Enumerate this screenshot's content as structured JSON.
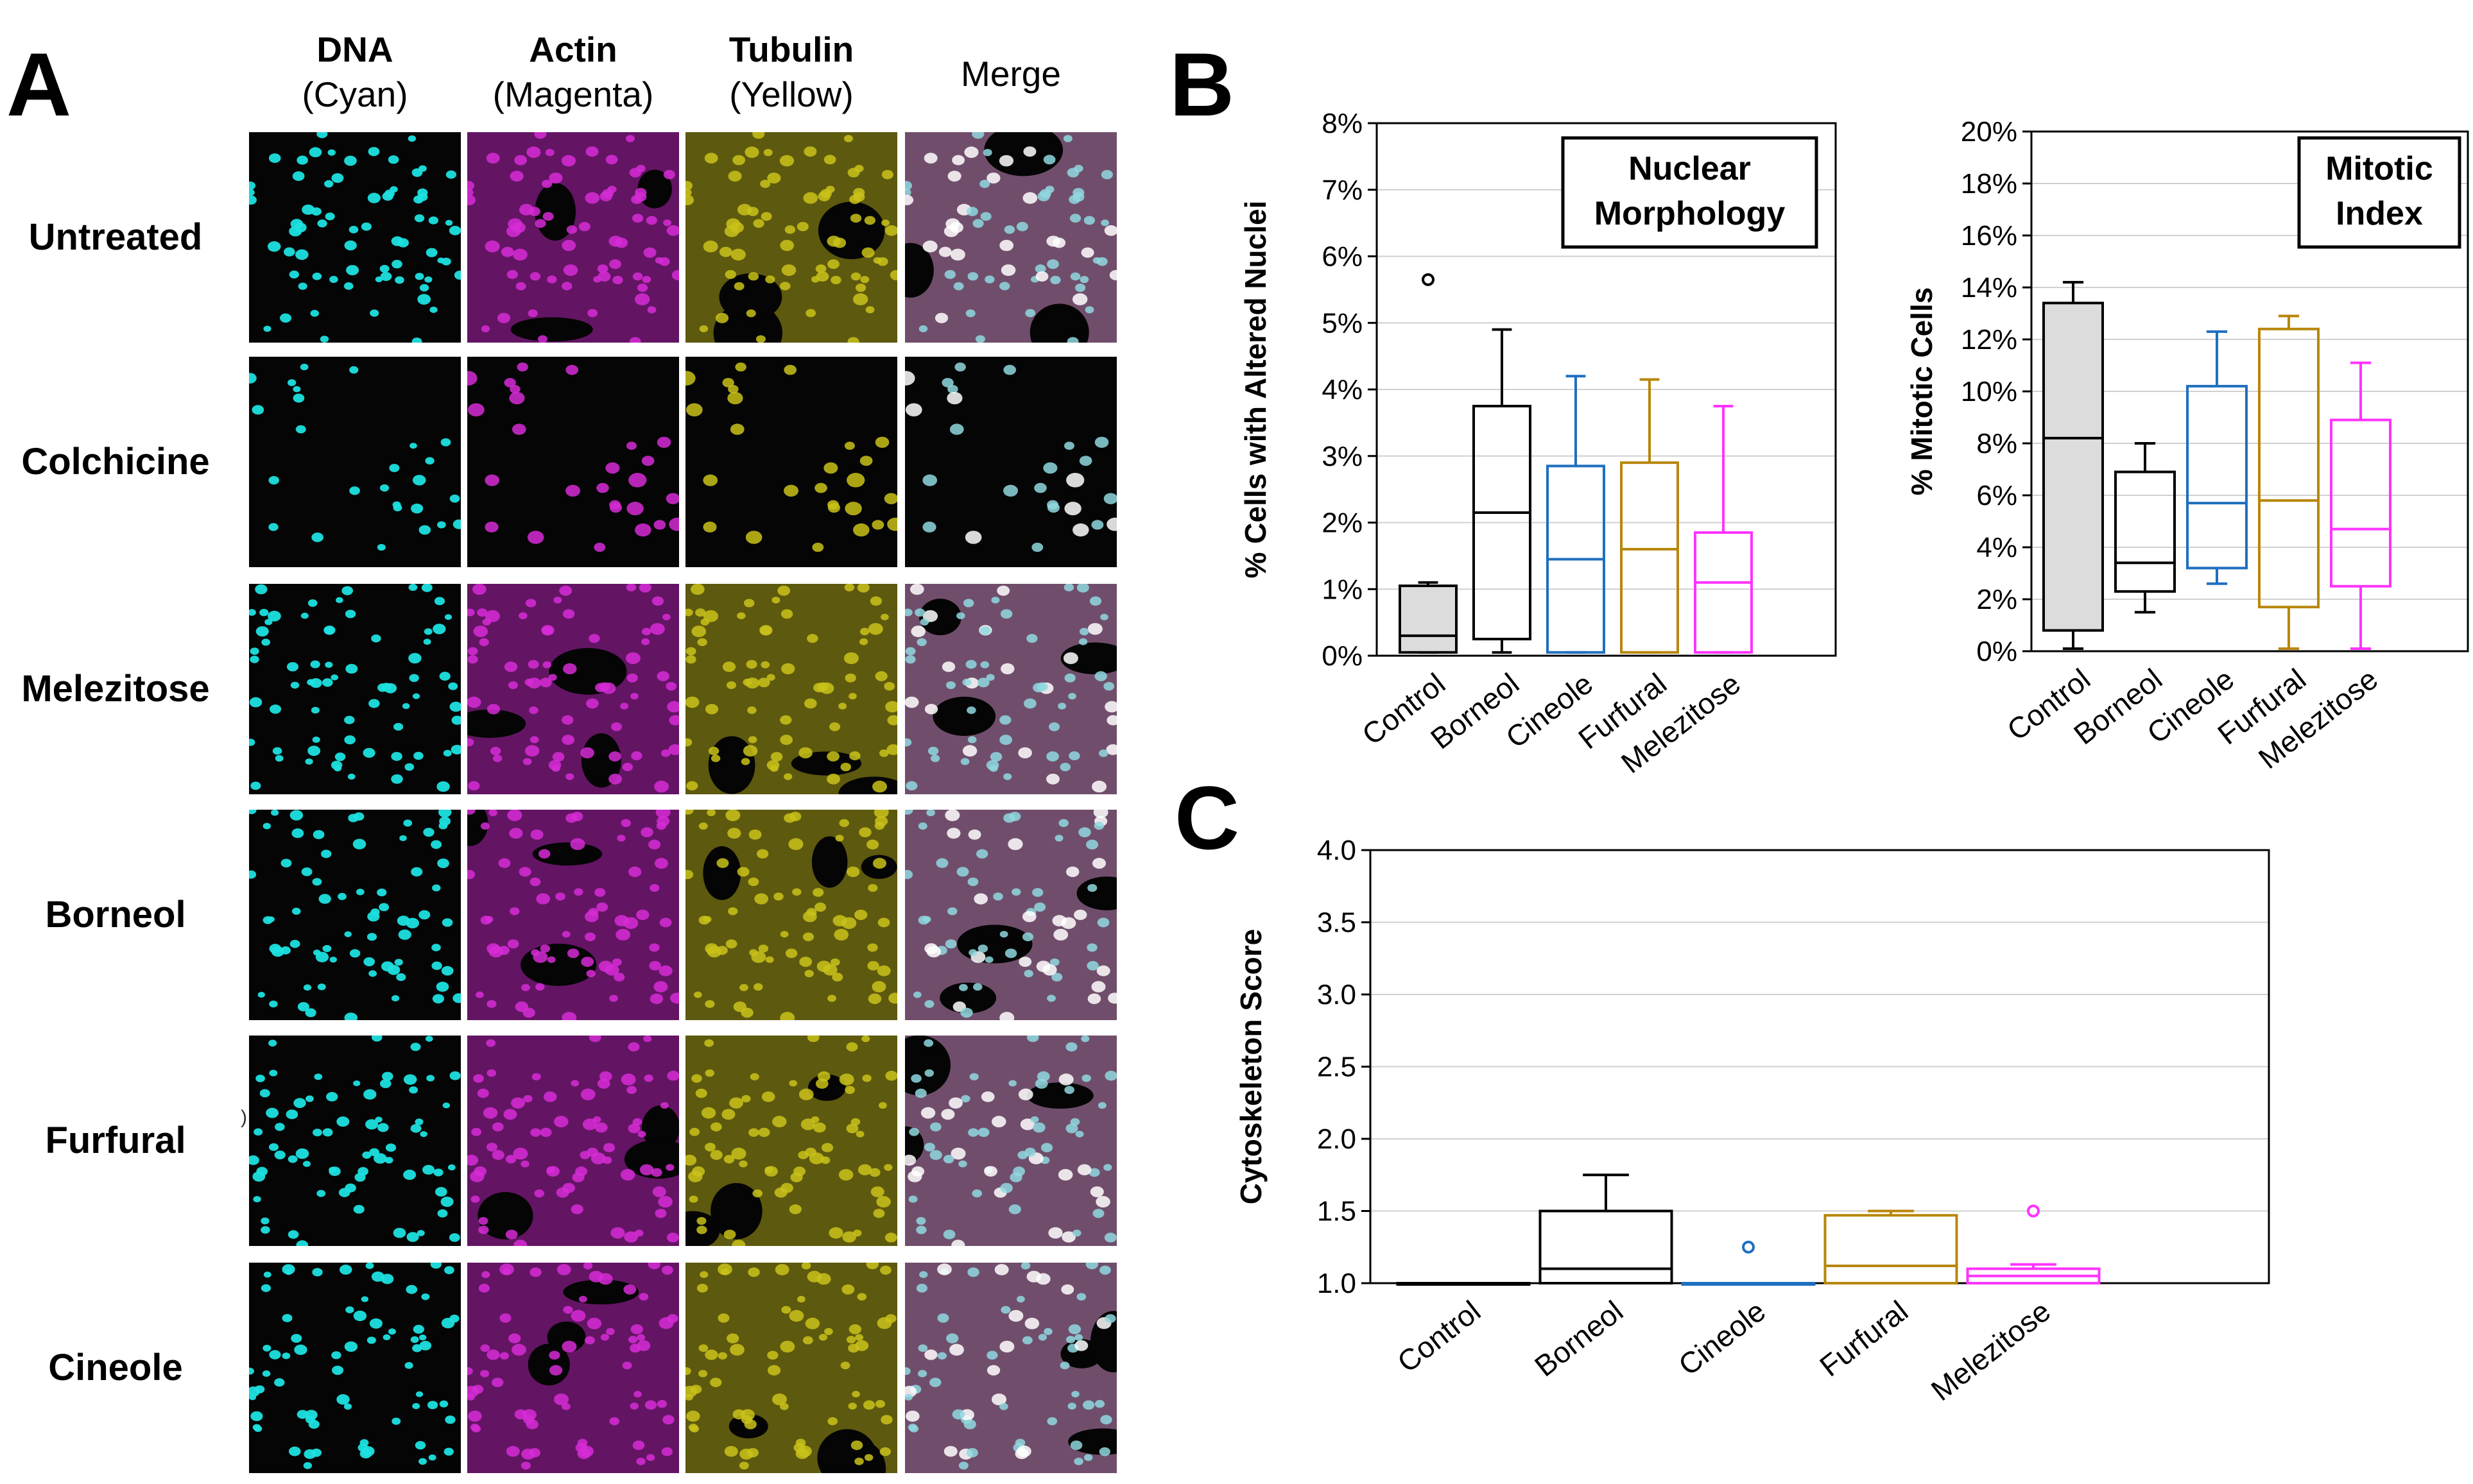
{
  "panels": {
    "a": "A",
    "b": "B",
    "c": "C"
  },
  "micrograph": {
    "columns": [
      {
        "name": "DNA",
        "sub": "(Cyan)",
        "color": "#1ee0e0"
      },
      {
        "name": "Actin",
        "sub": "(Magenta)",
        "color": "#d62bd6"
      },
      {
        "name": "Tubulin",
        "sub": "(Yellow)",
        "color": "#c9c21a"
      },
      {
        "name": "Merge",
        "sub": "",
        "color": "#c88ac0"
      }
    ],
    "rows": [
      {
        "label": "Untreated",
        "density": "high"
      },
      {
        "label": "Colchicine",
        "density": "sparse"
      },
      {
        "label": "Melezitose",
        "density": "high"
      },
      {
        "label": "Borneol",
        "density": "high"
      },
      {
        "label": "Furfural",
        "density": "high"
      },
      {
        "label": "Cineole",
        "density": "high"
      }
    ],
    "stray_mark": ")"
  },
  "chart_data": [
    {
      "id": "nuclear",
      "type": "boxplot",
      "title_lines": [
        "Nuclear",
        "Morphology"
      ],
      "ylabel": "% Cells with Altered Nuclei",
      "ylim": [
        0,
        8
      ],
      "yticks": [
        0,
        1,
        2,
        3,
        4,
        5,
        6,
        7,
        8
      ],
      "tick_suffix": "%",
      "tick_decimals": 0,
      "categories": [
        "Control",
        "Borneol",
        "Cineole",
        "Furfural",
        "Melezitose"
      ],
      "colors": [
        "#000000",
        "#000000",
        "#1f6fbf",
        "#b8860b",
        "#ff33ff"
      ],
      "fills": [
        "#dcdcdc",
        "none",
        "none",
        "none",
        "none"
      ],
      "boxes": [
        {
          "min": 0.05,
          "q1": 0.05,
          "median": 0.3,
          "q3": 1.05,
          "max": 1.1,
          "outliers": [
            5.65
          ]
        },
        {
          "min": 0.05,
          "q1": 0.25,
          "median": 2.15,
          "q3": 3.75,
          "max": 4.9,
          "outliers": []
        },
        {
          "min": 0.05,
          "q1": 0.05,
          "median": 1.45,
          "q3": 2.85,
          "max": 4.2,
          "outliers": []
        },
        {
          "min": 0.05,
          "q1": 0.05,
          "median": 1.6,
          "q3": 2.9,
          "max": 4.15,
          "outliers": []
        },
        {
          "min": 0.05,
          "q1": 0.05,
          "median": 1.1,
          "q3": 1.85,
          "max": 3.75,
          "outliers": []
        }
      ]
    },
    {
      "id": "mitotic",
      "type": "boxplot",
      "title_lines": [
        "Mitotic",
        "Index"
      ],
      "ylabel": "% Mitotic Cells",
      "ylim": [
        0,
        20
      ],
      "yticks": [
        0,
        2,
        4,
        6,
        8,
        10,
        12,
        14,
        16,
        18,
        20
      ],
      "tick_suffix": "%",
      "tick_decimals": 0,
      "categories": [
        "Control",
        "Borneol",
        "Cineole",
        "Furfural",
        "Melezitose"
      ],
      "colors": [
        "#000000",
        "#000000",
        "#1f6fbf",
        "#b8860b",
        "#ff33ff"
      ],
      "fills": [
        "#dcdcdc",
        "none",
        "none",
        "none",
        "none"
      ],
      "boxes": [
        {
          "min": 0.1,
          "q1": 0.8,
          "median": 8.2,
          "q3": 13.4,
          "max": 14.2,
          "outliers": []
        },
        {
          "min": 1.5,
          "q1": 2.3,
          "median": 3.4,
          "q3": 6.9,
          "max": 8.0,
          "outliers": []
        },
        {
          "min": 2.6,
          "q1": 3.2,
          "median": 5.7,
          "q3": 10.2,
          "max": 12.3,
          "outliers": []
        },
        {
          "min": 0.1,
          "q1": 1.7,
          "median": 5.8,
          "q3": 12.4,
          "max": 12.9,
          "outliers": []
        },
        {
          "min": 0.1,
          "q1": 2.5,
          "median": 4.7,
          "q3": 8.9,
          "max": 11.1,
          "outliers": []
        }
      ]
    },
    {
      "id": "cyto",
      "type": "boxplot",
      "title_lines": [],
      "ylabel": "Cytoskeleton Score",
      "ylim": [
        1.0,
        4.0
      ],
      "yticks": [
        1.0,
        1.5,
        2.0,
        2.5,
        3.0,
        3.5,
        4.0
      ],
      "tick_suffix": "",
      "tick_decimals": 1,
      "categories": [
        "Control",
        "Borneol",
        "Cineole",
        "Furfural",
        "Melezitose"
      ],
      "colors": [
        "#000000",
        "#000000",
        "#1f6fbf",
        "#b8860b",
        "#ff33ff"
      ],
      "fills": [
        "none",
        "none",
        "none",
        "none",
        "none"
      ],
      "boxes": [
        {
          "min": 1.0,
          "q1": 1.0,
          "median": 1.0,
          "q3": 1.0,
          "max": 1.0,
          "outliers": []
        },
        {
          "min": 1.0,
          "q1": 1.0,
          "median": 1.1,
          "q3": 1.5,
          "max": 1.75,
          "outliers": []
        },
        {
          "min": 1.0,
          "q1": 1.0,
          "median": 1.0,
          "q3": 1.0,
          "max": 1.0,
          "outliers": [
            1.25
          ]
        },
        {
          "min": 1.0,
          "q1": 1.0,
          "median": 1.12,
          "q3": 1.47,
          "max": 1.5,
          "outliers": []
        },
        {
          "min": 1.0,
          "q1": 1.0,
          "median": 1.05,
          "q3": 1.1,
          "max": 1.13,
          "outliers": [
            1.5
          ]
        }
      ]
    }
  ]
}
